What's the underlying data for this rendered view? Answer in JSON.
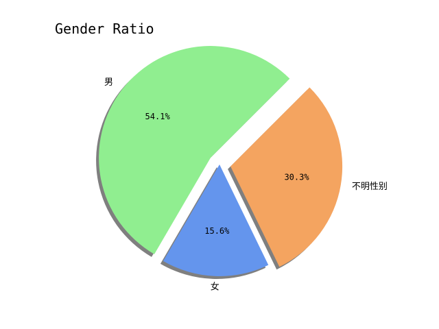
{
  "chart_data": {
    "type": "pie",
    "title": "Gender Ratio",
    "labels": [
      "男",
      "女",
      "不明性别"
    ],
    "values": [
      54.1,
      15.6,
      30.3
    ],
    "value_labels": [
      "54.1%",
      "15.6%",
      "30.3%"
    ],
    "colors": [
      "#90ee90",
      "#6495ed",
      "#f4a460"
    ],
    "explode": [
      0.1,
      0,
      0.1
    ],
    "shadow": true,
    "start_angle": 45
  }
}
